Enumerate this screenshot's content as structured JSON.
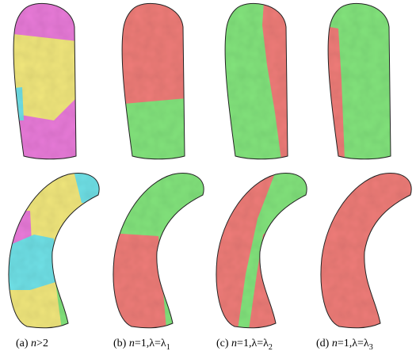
{
  "captions": [
    {
      "tag": "(a)",
      "var": "n",
      "rest": ">2"
    },
    {
      "tag": "(b)",
      "var": "n",
      "rest": "=1,λ=λ",
      "sub": "1"
    },
    {
      "tag": "(c)",
      "var": "n",
      "rest": "=1,λ=λ",
      "sub": "2"
    },
    {
      "tag": "(d)",
      "var": "n",
      "rest": "=1,λ=λ",
      "sub": "3"
    }
  ]
}
